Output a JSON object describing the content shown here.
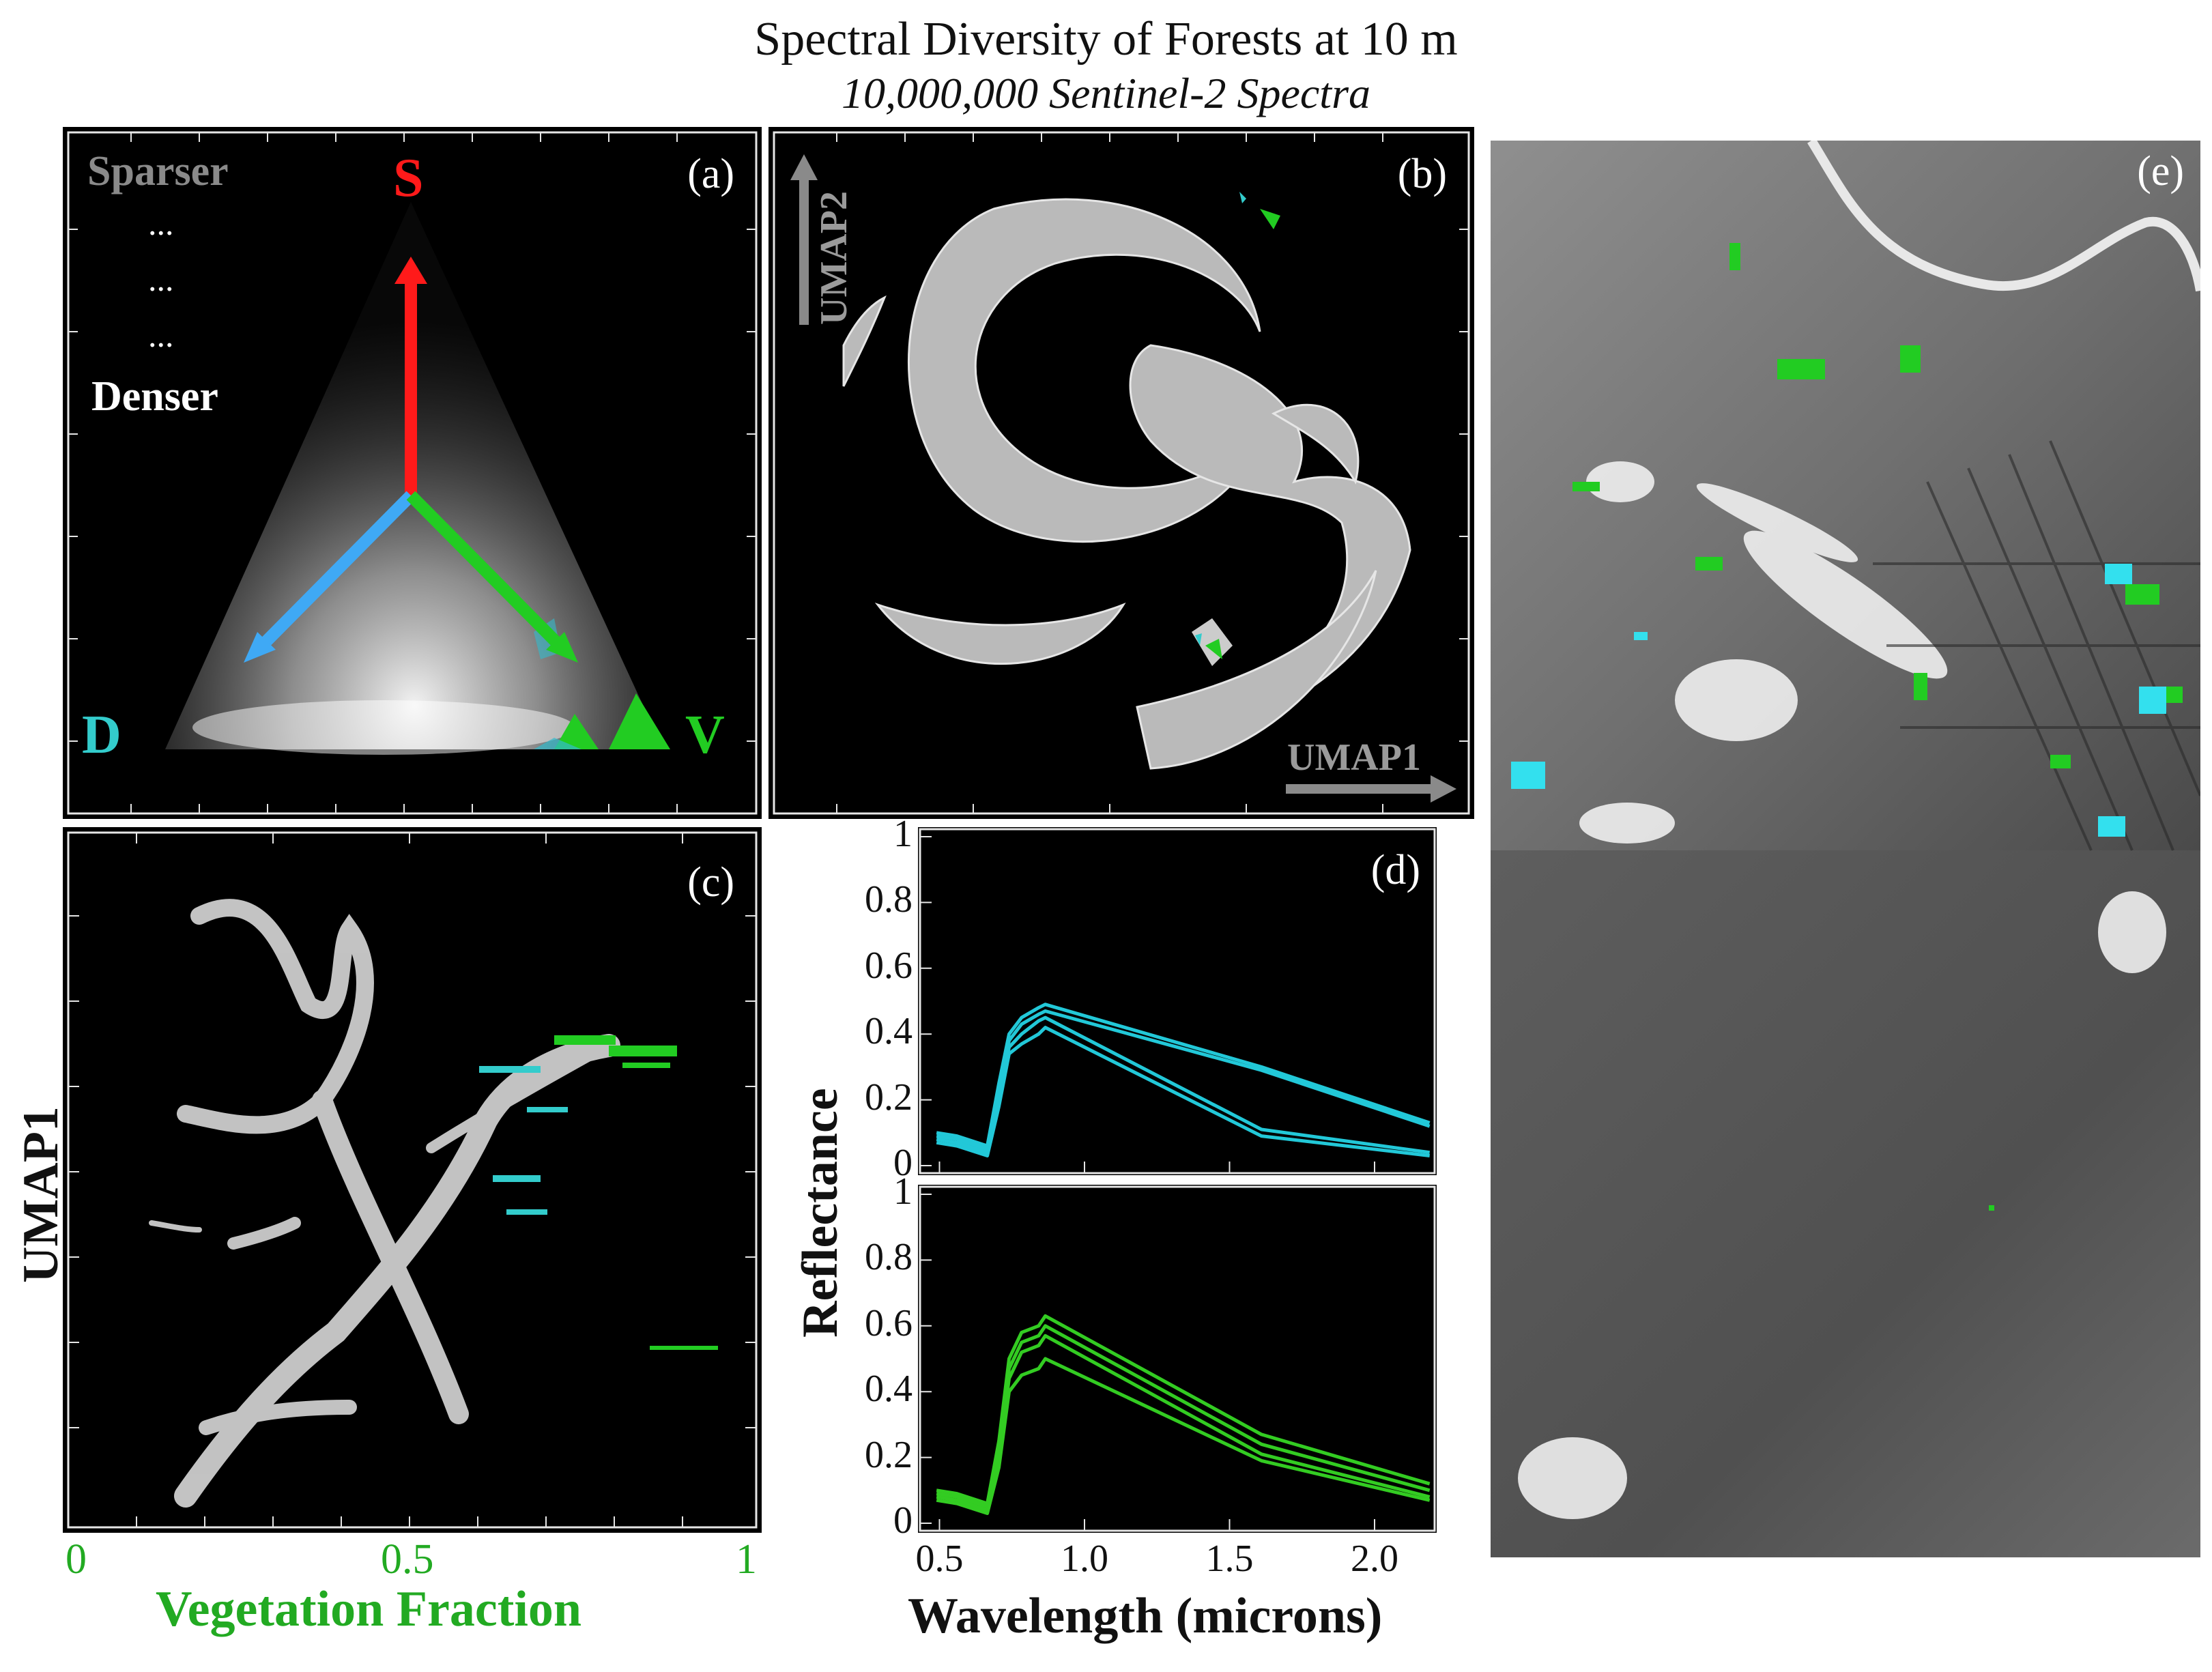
{
  "figure": {
    "title": "Spectral Diversity of Forests at 10 m",
    "subtitle": "10,000,000 Sentinel-2 Spectra"
  },
  "panels": {
    "a": {
      "tag": "(a)",
      "sparser": "Sparser",
      "dots": [
        "...",
        "...",
        "..."
      ],
      "denser": "Denser",
      "vertex_S": "S",
      "vertex_D": "D",
      "vertex_V": "V",
      "colors": {
        "S": "#ff1a1a",
        "D": "#3fa9f5",
        "V": "#22cc22",
        "D_label": "#33cccc"
      }
    },
    "b": {
      "tag": "(b)",
      "axis_x": "UMAP1",
      "axis_y": "UMAP2"
    },
    "c": {
      "tag": "(c)",
      "ylabel": "UMAP1",
      "xlabel": "Vegetation Fraction",
      "xticks": [
        "0",
        "0.5",
        "1"
      ],
      "xlabel_color": "#22aa22"
    },
    "d": {
      "tag": "(d)",
      "ylabel": "Reflectance",
      "xlabel": "Wavelength (microns)"
    },
    "e": {
      "tag": "(e)"
    }
  },
  "chart_data": [
    {
      "type": "line",
      "panel": "d-top",
      "xlabel": "Wavelength (microns)",
      "ylabel": "Reflectance",
      "xlim": [
        0.44,
        2.2
      ],
      "ylim": [
        0,
        1
      ],
      "yticks": [
        "0",
        "0.2",
        "0.4",
        "0.6",
        "0.8",
        "1"
      ],
      "xticks": [],
      "color": "#22c8d8",
      "x": [
        0.49,
        0.56,
        0.665,
        0.705,
        0.74,
        0.783,
        0.842,
        0.865,
        1.61,
        2.19
      ],
      "series": [
        {
          "values": [
            0.1,
            0.09,
            0.06,
            0.25,
            0.4,
            0.45,
            0.48,
            0.49,
            0.3,
            0.13
          ]
        },
        {
          "values": [
            0.09,
            0.08,
            0.05,
            0.22,
            0.38,
            0.43,
            0.46,
            0.47,
            0.29,
            0.12
          ]
        },
        {
          "values": [
            0.08,
            0.07,
            0.04,
            0.2,
            0.36,
            0.4,
            0.44,
            0.45,
            0.11,
            0.04
          ]
        },
        {
          "values": [
            0.07,
            0.06,
            0.03,
            0.18,
            0.34,
            0.37,
            0.4,
            0.42,
            0.09,
            0.03
          ]
        }
      ]
    },
    {
      "type": "line",
      "panel": "d-bottom",
      "xlabel": "Wavelength (microns)",
      "ylabel": "Reflectance",
      "xlim": [
        0.44,
        2.2
      ],
      "ylim": [
        0,
        1
      ],
      "yticks": [
        "0",
        "0.2",
        "0.4",
        "0.6",
        "0.8",
        "1"
      ],
      "xticks": [
        "0.5",
        "1.0",
        "1.5",
        "2.0"
      ],
      "color": "#33cc22",
      "x": [
        0.49,
        0.56,
        0.665,
        0.705,
        0.74,
        0.783,
        0.842,
        0.865,
        1.61,
        2.19
      ],
      "series": [
        {
          "values": [
            0.1,
            0.09,
            0.06,
            0.25,
            0.5,
            0.58,
            0.6,
            0.63,
            0.27,
            0.12
          ]
        },
        {
          "values": [
            0.09,
            0.08,
            0.05,
            0.22,
            0.47,
            0.55,
            0.57,
            0.6,
            0.24,
            0.1
          ]
        },
        {
          "values": [
            0.08,
            0.07,
            0.04,
            0.2,
            0.44,
            0.52,
            0.54,
            0.57,
            0.21,
            0.08
          ]
        },
        {
          "values": [
            0.07,
            0.06,
            0.03,
            0.17,
            0.4,
            0.45,
            0.47,
            0.5,
            0.19,
            0.07
          ]
        }
      ]
    }
  ]
}
